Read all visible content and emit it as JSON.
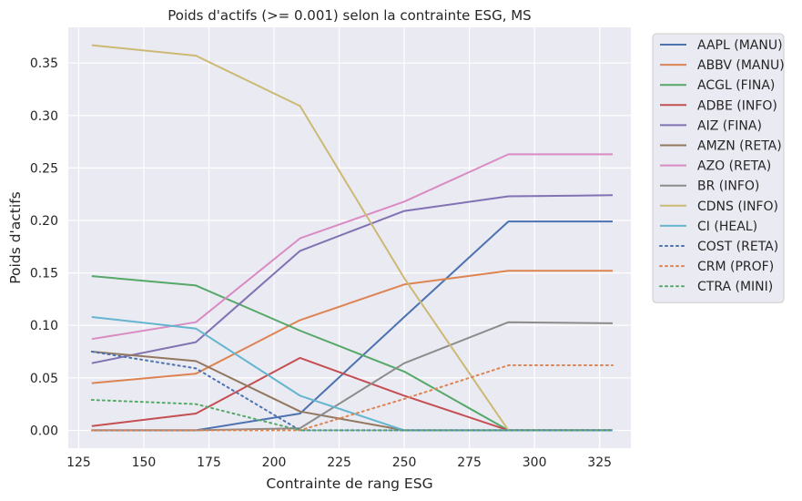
{
  "chart_data": {
    "type": "line",
    "title": "Poids d'actifs (>= 0.001) selon la contrainte ESG, MS",
    "xlabel": "Contrainte de rang ESG",
    "ylabel": "Poids d'actifs",
    "xlim": [
      121,
      337
    ],
    "ylim": [
      -0.017,
      0.384
    ],
    "xticks": [
      125,
      150,
      175,
      200,
      225,
      250,
      275,
      300,
      325
    ],
    "yticks": [
      0.0,
      0.05,
      0.1,
      0.15,
      0.2,
      0.25,
      0.3,
      0.35
    ],
    "ytick_labels": [
      "0.00",
      "0.05",
      "0.10",
      "0.15",
      "0.20",
      "0.25",
      "0.30",
      "0.35"
    ],
    "x": [
      130,
      170,
      210,
      250,
      290,
      330
    ],
    "grid": true,
    "legend_position": "outside-right",
    "series": [
      {
        "name": "AAPL (MANU)",
        "color": "#4c72b0",
        "dash": "solid",
        "values": [
          0.0,
          0.0,
          0.016,
          0.108,
          0.199,
          0.199
        ]
      },
      {
        "name": "ABBV (MANU)",
        "color": "#dd8452",
        "dash": "solid",
        "values": [
          0.045,
          0.054,
          0.105,
          0.139,
          0.152,
          0.152
        ]
      },
      {
        "name": "ACGL (FINA)",
        "color": "#55a868",
        "dash": "solid",
        "values": [
          0.147,
          0.138,
          0.095,
          0.056,
          0.0,
          0.0
        ]
      },
      {
        "name": "ADBE (INFO)",
        "color": "#c44e52",
        "dash": "solid",
        "values": [
          0.004,
          0.016,
          0.069,
          0.033,
          0.0,
          0.0
        ]
      },
      {
        "name": "AIZ (FINA)",
        "color": "#8172b3",
        "dash": "solid",
        "values": [
          0.064,
          0.084,
          0.171,
          0.209,
          0.223,
          0.224
        ]
      },
      {
        "name": "AMZN (RETA)",
        "color": "#937860",
        "dash": "solid",
        "values": [
          0.075,
          0.066,
          0.018,
          0.0,
          0.0,
          0.0
        ]
      },
      {
        "name": "AZO (RETA)",
        "color": "#da8bc3",
        "dash": "solid",
        "values": [
          0.087,
          0.103,
          0.183,
          0.218,
          0.263,
          0.263
        ]
      },
      {
        "name": "BR (INFO)",
        "color": "#8c8c8c",
        "dash": "solid",
        "values": [
          0.0,
          0.0,
          0.002,
          0.064,
          0.103,
          0.102
        ]
      },
      {
        "name": "CDNS (INFO)",
        "color": "#ccb974",
        "dash": "solid",
        "values": [
          0.367,
          0.357,
          0.309,
          0.145,
          0.0,
          0.0
        ]
      },
      {
        "name": "CI (HEAL)",
        "color": "#64b5cd",
        "dash": "solid",
        "values": [
          0.108,
          0.097,
          0.033,
          0.0,
          0.0,
          0.0
        ]
      },
      {
        "name": "COST (RETA)",
        "color": "#4c72b0",
        "dash": "dotted",
        "values": [
          0.075,
          0.059,
          0.0,
          0.0,
          0.0,
          0.0
        ]
      },
      {
        "name": "CRM (PROF)",
        "color": "#dd8452",
        "dash": "dotted",
        "values": [
          0.0,
          0.0,
          0.0,
          0.03,
          0.062,
          0.062
        ]
      },
      {
        "name": "CTRA (MINI)",
        "color": "#55a868",
        "dash": "dotted",
        "values": [
          0.029,
          0.025,
          0.0,
          0.0,
          0.0,
          0.0
        ]
      }
    ]
  }
}
